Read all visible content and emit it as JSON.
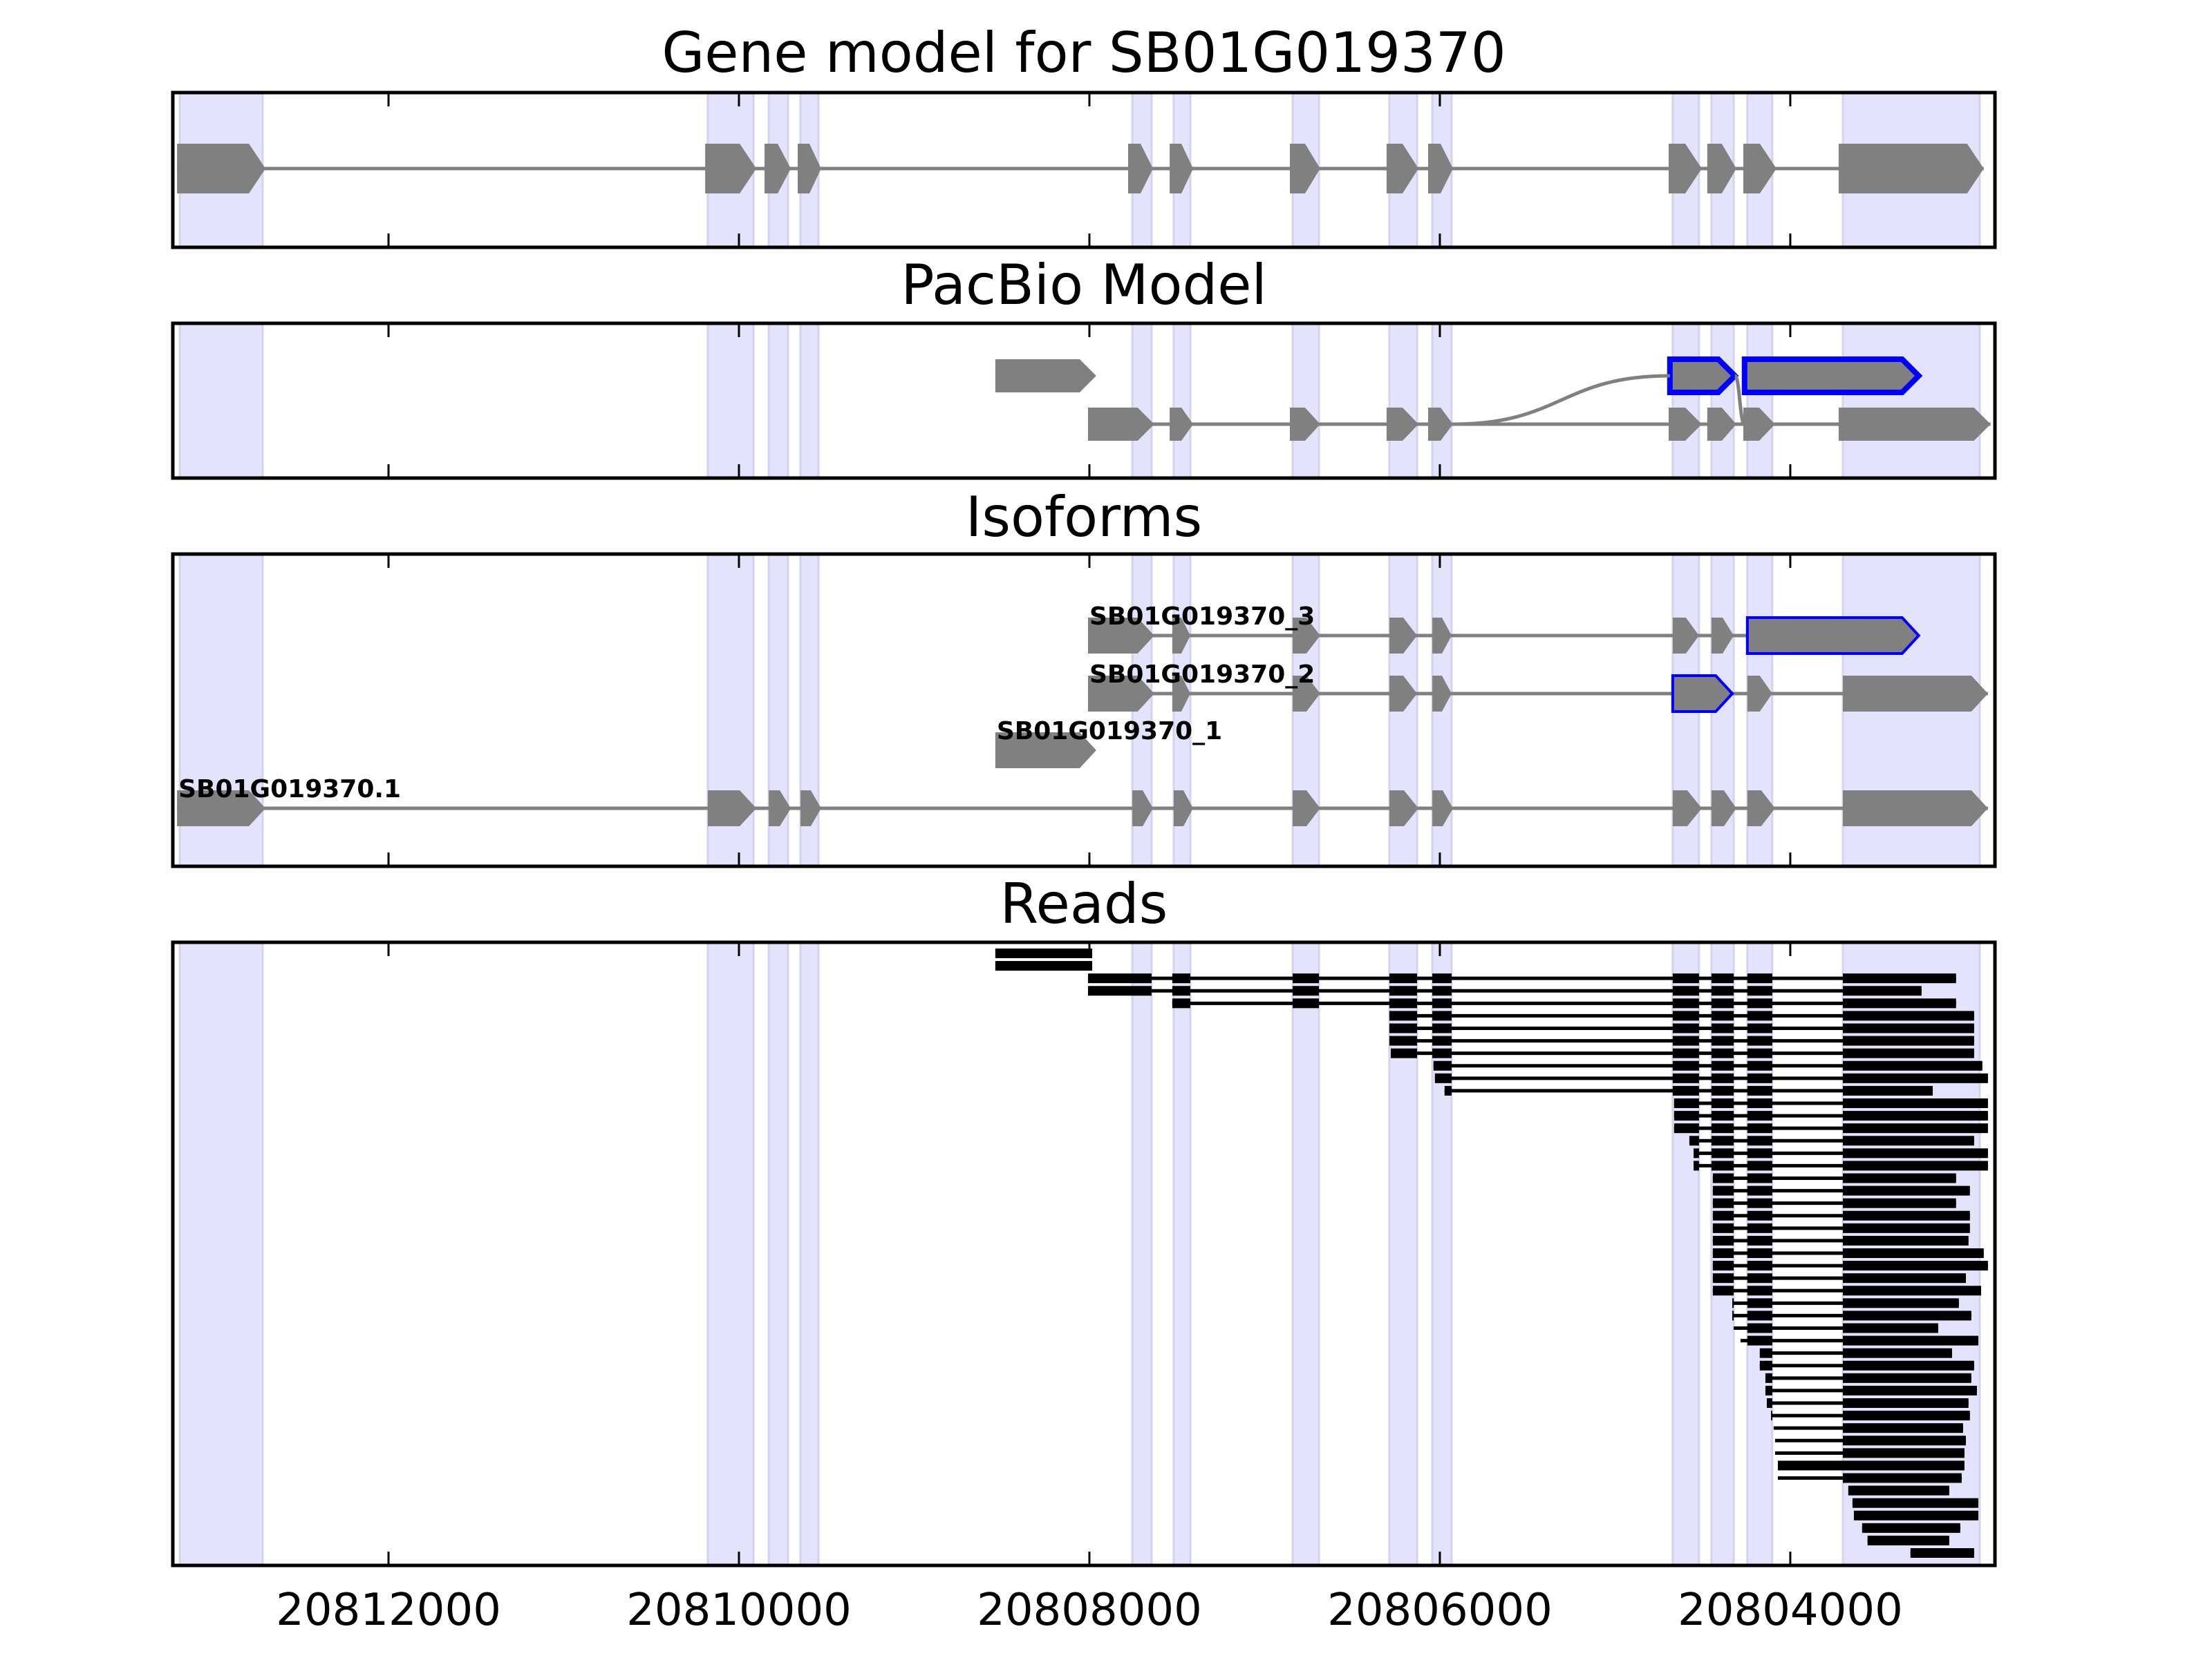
{
  "chart_data": {
    "type": "gene-track",
    "xlim": [
      20813231,
      20802832
    ],
    "x_ticks": [
      20812000,
      20810000,
      20808000,
      20806000,
      20804000
    ],
    "x_tick_labels": [
      "20812000",
      "20810000",
      "20808000",
      "20806000",
      "20804000"
    ],
    "colors": {
      "shade": "#e3e3fb",
      "shade_edge": "#d3d3ee",
      "exon": "#808080",
      "highlight": "#0000ff",
      "read": "#000000"
    },
    "exon_regions": [
      [
        20813191,
        20812718
      ],
      [
        20810178,
        20809917
      ],
      [
        20809830,
        20809720
      ],
      [
        20809649,
        20809546
      ],
      [
        20807755,
        20807645
      ],
      [
        20807519,
        20807424
      ],
      [
        20806840,
        20806690
      ],
      [
        20806288,
        20806130
      ],
      [
        20806043,
        20805933
      ],
      [
        20804671,
        20804521
      ],
      [
        20804450,
        20804323
      ],
      [
        20804245,
        20804103
      ],
      [
        20803700,
        20802919
      ]
    ],
    "panels": [
      {
        "title": "Gene model for SB01G019370",
        "tracks": [
          {
            "exons": [
              {
                "s": 20813207,
                "e": 20812702
              },
              {
                "s": 20810193,
                "e": 20809901
              },
              {
                "s": 20809854,
                "e": 20809704
              },
              {
                "s": 20809665,
                "e": 20809531
              },
              {
                "s": 20807779,
                "e": 20807637
              },
              {
                "s": 20807542,
                "e": 20807408
              },
              {
                "s": 20806856,
                "e": 20806683
              },
              {
                "s": 20806304,
                "e": 20806122
              },
              {
                "s": 20806067,
                "e": 20805925
              },
              {
                "s": 20804694,
                "e": 20804505
              },
              {
                "s": 20804474,
                "e": 20804308
              },
              {
                "s": 20804268,
                "e": 20804079
              },
              {
                "s": 20803724,
                "e": 20802896
              }
            ]
          }
        ]
      },
      {
        "title": "PacBio Model",
        "tracks": [
          {
            "exons": [
              {
                "s": 20808537,
                "e": 20807961
              },
              {
                "s": 20804687,
                "e": 20804316,
                "style": "blue"
              },
              {
                "s": 20804261,
                "e": 20803267,
                "style": "blue"
              }
            ],
            "no_intron": true
          },
          {
            "exons": [
              {
                "s": 20808008,
                "e": 20807630
              },
              {
                "s": 20807542,
                "e": 20807408
              },
              {
                "s": 20806856,
                "e": 20806683
              },
              {
                "s": 20806304,
                "e": 20806122
              },
              {
                "s": 20806067,
                "e": 20805925
              },
              {
                "s": 20804694,
                "e": 20804505
              },
              {
                "s": 20804474,
                "e": 20804308
              },
              {
                "s": 20804268,
                "e": 20804087
              },
              {
                "s": 20803724,
                "e": 20802857
              }
            ]
          }
        ],
        "connectors": [
          {
            "from": [
              20805925,
              1
            ],
            "to": [
              20804687,
              0
            ]
          },
          {
            "from": [
              20804316,
              0
            ],
            "to": [
              20804261,
              1
            ]
          }
        ]
      },
      {
        "title": "Isoforms",
        "tracks": [
          {
            "label": "SB01G019370_3",
            "exons": [
              {
                "s": 20808008,
                "e": 20807630
              },
              {
                "s": 20807527,
                "e": 20807424
              },
              {
                "s": 20806840,
                "e": 20806683
              },
              {
                "s": 20806288,
                "e": 20806130
              },
              {
                "s": 20806043,
                "e": 20805933
              },
              {
                "s": 20804671,
                "e": 20804521
              },
              {
                "s": 20804450,
                "e": 20804323
              },
              {
                "s": 20804245,
                "e": 20803267,
                "style": "blue-thin"
              }
            ]
          },
          {
            "label": "SB01G019370_2",
            "exons": [
              {
                "s": 20808008,
                "e": 20807630
              },
              {
                "s": 20807527,
                "e": 20807424
              },
              {
                "s": 20806840,
                "e": 20806683
              },
              {
                "s": 20806288,
                "e": 20806130
              },
              {
                "s": 20806043,
                "e": 20805933
              },
              {
                "s": 20804671,
                "e": 20804331,
                "style": "blue-thin"
              },
              {
                "s": 20804245,
                "e": 20804103
              },
              {
                "s": 20803700,
                "e": 20802872
              }
            ]
          },
          {
            "label": "SB01G019370_1",
            "exons": [
              {
                "s": 20808537,
                "e": 20807961
              }
            ]
          },
          {
            "label": "SB01G019370.1",
            "exons": [
              {
                "s": 20813207,
                "e": 20812702
              },
              {
                "s": 20810178,
                "e": 20809901
              },
              {
                "s": 20809830,
                "e": 20809704
              },
              {
                "s": 20809649,
                "e": 20809531
              },
              {
                "s": 20807755,
                "e": 20807637
              },
              {
                "s": 20807519,
                "e": 20807408
              },
              {
                "s": 20806840,
                "e": 20806683
              },
              {
                "s": 20806288,
                "e": 20806122
              },
              {
                "s": 20806043,
                "e": 20805925
              },
              {
                "s": 20804671,
                "e": 20804505
              },
              {
                "s": 20804450,
                "e": 20804308
              },
              {
                "s": 20804245,
                "e": 20804087
              },
              {
                "s": 20803700,
                "e": 20802872
              }
            ]
          }
        ]
      },
      {
        "title": "Reads",
        "read_exons": [
          [
            20808008,
            20807645
          ],
          [
            20807527,
            20807424
          ],
          [
            20806840,
            20806690
          ],
          [
            20806288,
            20806130
          ],
          [
            20806043,
            20805933
          ],
          [
            20804671,
            20804521
          ],
          [
            20804450,
            20804323
          ],
          [
            20804245,
            20804103
          ],
          [
            20803700,
            20802800
          ]
        ],
        "reads": [
          {
            "s": 20808537,
            "e": 20807984,
            "unspliced": true
          },
          {
            "s": 20808537,
            "e": 20807984,
            "unspliced": true
          },
          {
            "s": 20808008,
            "e": 20803054
          },
          {
            "s": 20808008,
            "e": 20803251
          },
          {
            "s": 20807527,
            "e": 20803054
          },
          {
            "s": 20806288,
            "e": 20802951
          },
          {
            "s": 20806288,
            "e": 20802951
          },
          {
            "s": 20806288,
            "e": 20802951
          },
          {
            "s": 20806280,
            "e": 20802951
          },
          {
            "s": 20806036,
            "e": 20802904
          },
          {
            "s": 20806028,
            "e": 20802872
          },
          {
            "s": 20805973,
            "e": 20803187
          },
          {
            "s": 20804663,
            "e": 20802872
          },
          {
            "s": 20804663,
            "e": 20802872
          },
          {
            "s": 20804663,
            "e": 20802872
          },
          {
            "s": 20804576,
            "e": 20802951
          },
          {
            "s": 20804552,
            "e": 20802872
          },
          {
            "s": 20804552,
            "e": 20802872
          },
          {
            "s": 20804442,
            "e": 20803054
          },
          {
            "s": 20804442,
            "e": 20802975
          },
          {
            "s": 20804442,
            "e": 20803054
          },
          {
            "s": 20804442,
            "e": 20802975
          },
          {
            "s": 20804442,
            "e": 20802975
          },
          {
            "s": 20804442,
            "e": 20802983
          },
          {
            "s": 20804442,
            "e": 20802896
          },
          {
            "s": 20804442,
            "e": 20802872
          },
          {
            "s": 20804442,
            "e": 20802998
          },
          {
            "s": 20804442,
            "e": 20802911
          },
          {
            "s": 20804331,
            "e": 20803038
          },
          {
            "s": 20804331,
            "e": 20802967
          },
          {
            "s": 20804323,
            "e": 20803156
          },
          {
            "s": 20804284,
            "e": 20802927
          },
          {
            "s": 20804174,
            "e": 20803077
          },
          {
            "s": 20804174,
            "e": 20802951
          },
          {
            "s": 20804142,
            "e": 20802967
          },
          {
            "s": 20804142,
            "e": 20802935
          },
          {
            "s": 20804134,
            "e": 20802983
          },
          {
            "s": 20804110,
            "e": 20802975
          },
          {
            "s": 20804095,
            "e": 20803014
          },
          {
            "s": 20804087,
            "e": 20802998
          },
          {
            "s": 20804087,
            "e": 20803006
          },
          {
            "s": 20804071,
            "e": 20803006,
            "unspliced": true
          },
          {
            "s": 20804071,
            "e": 20803022
          },
          {
            "s": 20803669,
            "e": 20803093
          },
          {
            "s": 20803645,
            "e": 20802927
          },
          {
            "s": 20803637,
            "e": 20802927
          },
          {
            "s": 20803590,
            "e": 20803030
          },
          {
            "s": 20803559,
            "e": 20803093
          },
          {
            "s": 20803314,
            "e": 20802951
          }
        ]
      }
    ]
  }
}
